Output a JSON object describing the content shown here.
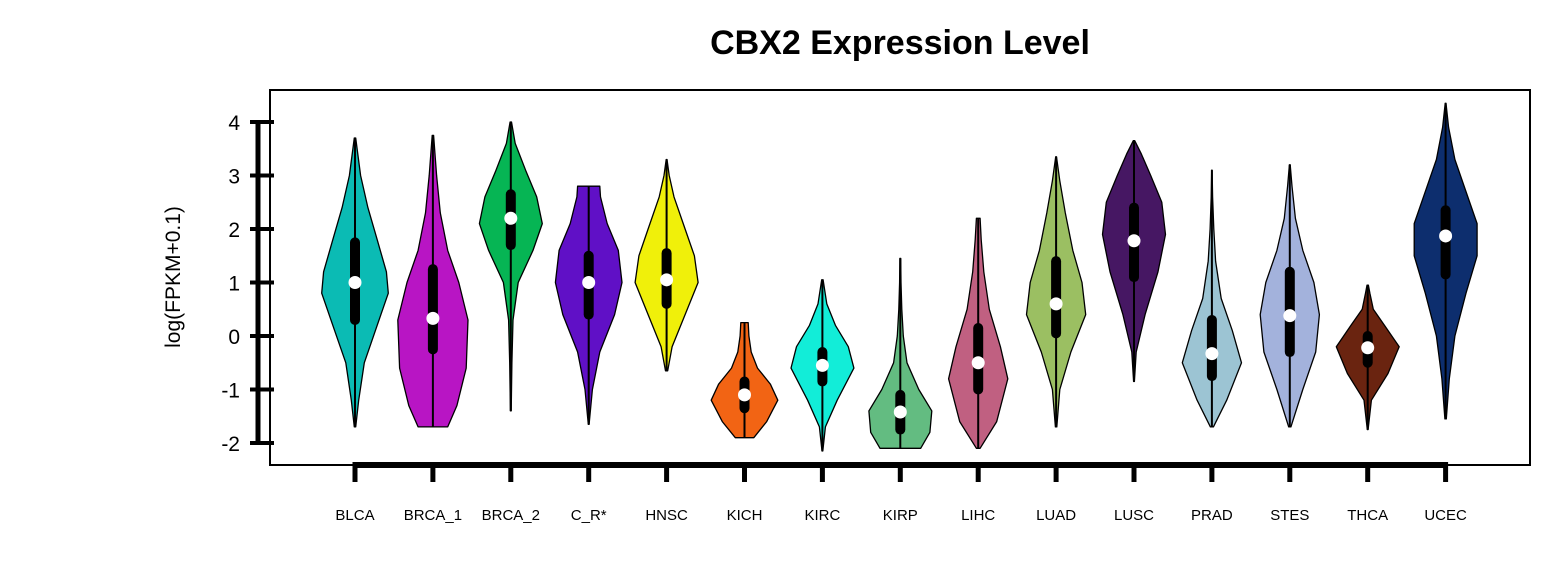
{
  "chart_data": {
    "type": "violin",
    "title": "CBX2 Expression Level",
    "xlabel": "",
    "ylabel": "log(FPKM+0.1)",
    "ylim": [
      -2.4,
      4.3
    ],
    "yticks": [
      -2,
      -1,
      0,
      1,
      2,
      3,
      4
    ],
    "grid": false,
    "legend": "none",
    "categories": [
      "BLCA",
      "BRCA_1",
      "BRCA_2",
      "C_R*",
      "HNSC",
      "KICH",
      "KIRC",
      "KIRP",
      "LIHC",
      "LUAD",
      "LUSC",
      "PRAD",
      "STES",
      "THCA",
      "UCEC"
    ],
    "series": [
      {
        "category": "BLCA",
        "color": "#0BBBB4",
        "min": -1.7,
        "q1": 0.3,
        "median": 1.0,
        "q3": 1.75,
        "max": 3.7,
        "density": [
          [
            -1.7,
            0.02
          ],
          [
            -1.2,
            0.1
          ],
          [
            -0.5,
            0.25
          ],
          [
            0.2,
            0.6
          ],
          [
            0.8,
            0.9
          ],
          [
            1.2,
            0.85
          ],
          [
            1.8,
            0.6
          ],
          [
            2.4,
            0.35
          ],
          [
            3.0,
            0.15
          ],
          [
            3.7,
            0.02
          ]
        ]
      },
      {
        "category": "BRCA_1",
        "color": "#B815C4",
        "min": -1.7,
        "q1": -0.25,
        "median": 0.33,
        "q3": 1.25,
        "max": 3.75,
        "density": [
          [
            -1.7,
            0.4
          ],
          [
            -1.3,
            0.65
          ],
          [
            -0.6,
            0.9
          ],
          [
            0.3,
            0.95
          ],
          [
            1.0,
            0.7
          ],
          [
            1.6,
            0.4
          ],
          [
            2.3,
            0.2
          ],
          [
            3.0,
            0.1
          ],
          [
            3.75,
            0.02
          ]
        ]
      },
      {
        "category": "BRCA_2",
        "color": "#06B554",
        "min": -1.4,
        "q1": 1.7,
        "median": 2.2,
        "q3": 2.65,
        "max": 4.0,
        "density": [
          [
            -1.4,
            0.01
          ],
          [
            -0.5,
            0.03
          ],
          [
            0.3,
            0.06
          ],
          [
            1.0,
            0.2
          ],
          [
            1.6,
            0.6
          ],
          [
            2.1,
            0.85
          ],
          [
            2.6,
            0.7
          ],
          [
            3.1,
            0.4
          ],
          [
            3.6,
            0.12
          ],
          [
            4.0,
            0.02
          ]
        ]
      },
      {
        "category": "C_R*",
        "color": "#6010C6",
        "min": -1.65,
        "q1": 0.4,
        "median": 1.0,
        "q3": 1.5,
        "max": 2.8,
        "density": [
          [
            -1.65,
            0.01
          ],
          [
            -1.0,
            0.1
          ],
          [
            -0.3,
            0.3
          ],
          [
            0.4,
            0.7
          ],
          [
            1.0,
            0.9
          ],
          [
            1.6,
            0.8
          ],
          [
            2.1,
            0.5
          ],
          [
            2.6,
            0.32
          ],
          [
            2.8,
            0.3
          ]
        ]
      },
      {
        "category": "HNSC",
        "color": "#F0F00A",
        "min": -0.65,
        "q1": 0.6,
        "median": 1.05,
        "q3": 1.55,
        "max": 3.3,
        "density": [
          [
            -0.65,
            0.03
          ],
          [
            -0.2,
            0.15
          ],
          [
            0.4,
            0.5
          ],
          [
            1.0,
            0.85
          ],
          [
            1.5,
            0.75
          ],
          [
            2.0,
            0.5
          ],
          [
            2.6,
            0.2
          ],
          [
            3.0,
            0.07
          ],
          [
            3.3,
            0.01
          ]
        ]
      },
      {
        "category": "KICH",
        "color": "#F26414",
        "min": -1.9,
        "q1": -1.35,
        "median": -1.1,
        "q3": -0.85,
        "max": 0.25,
        "density": [
          [
            -1.9,
            0.25
          ],
          [
            -1.6,
            0.6
          ],
          [
            -1.2,
            0.9
          ],
          [
            -0.9,
            0.7
          ],
          [
            -0.6,
            0.35
          ],
          [
            -0.3,
            0.18
          ],
          [
            0.0,
            0.12
          ],
          [
            0.25,
            0.1
          ]
        ]
      },
      {
        "category": "KIRC",
        "color": "#12EDD8",
        "min": -2.15,
        "q1": -0.85,
        "median": -0.55,
        "q3": -0.3,
        "max": 1.05,
        "density": [
          [
            -2.15,
            0.01
          ],
          [
            -1.7,
            0.08
          ],
          [
            -1.2,
            0.4
          ],
          [
            -0.6,
            0.85
          ],
          [
            -0.2,
            0.7
          ],
          [
            0.2,
            0.35
          ],
          [
            0.6,
            0.12
          ],
          [
            1.05,
            0.02
          ]
        ]
      },
      {
        "category": "KIRP",
        "color": "#63BC81",
        "min": -2.1,
        "q1": -1.75,
        "median": -1.42,
        "q3": -1.1,
        "max": 1.45,
        "density": [
          [
            -2.1,
            0.55
          ],
          [
            -1.8,
            0.8
          ],
          [
            -1.4,
            0.85
          ],
          [
            -1.0,
            0.5
          ],
          [
            -0.5,
            0.18
          ],
          [
            0.0,
            0.08
          ],
          [
            0.5,
            0.04
          ],
          [
            1.0,
            0.02
          ],
          [
            1.45,
            0.01
          ]
        ]
      },
      {
        "category": "LIHC",
        "color": "#C06081",
        "min": -2.1,
        "q1": -1.0,
        "median": -0.5,
        "q3": 0.15,
        "max": 2.2,
        "density": [
          [
            -2.1,
            0.05
          ],
          [
            -1.6,
            0.5
          ],
          [
            -0.8,
            0.8
          ],
          [
            -0.2,
            0.6
          ],
          [
            0.5,
            0.3
          ],
          [
            1.2,
            0.15
          ],
          [
            1.8,
            0.08
          ],
          [
            2.2,
            0.05
          ]
        ]
      },
      {
        "category": "LUAD",
        "color": "#9BBF62",
        "min": -1.7,
        "q1": 0.05,
        "median": 0.6,
        "q3": 1.4,
        "max": 3.35,
        "density": [
          [
            -1.7,
            0.02
          ],
          [
            -1.0,
            0.1
          ],
          [
            -0.3,
            0.4
          ],
          [
            0.4,
            0.8
          ],
          [
            1.0,
            0.7
          ],
          [
            1.6,
            0.45
          ],
          [
            2.3,
            0.25
          ],
          [
            2.9,
            0.1
          ],
          [
            3.35,
            0.01
          ]
        ]
      },
      {
        "category": "LUSC",
        "color": "#461763",
        "min": -0.85,
        "q1": 1.1,
        "median": 1.78,
        "q3": 2.4,
        "max": 3.65,
        "density": [
          [
            -0.85,
            0.01
          ],
          [
            -0.3,
            0.06
          ],
          [
            0.4,
            0.3
          ],
          [
            1.2,
            0.65
          ],
          [
            1.9,
            0.85
          ],
          [
            2.5,
            0.75
          ],
          [
            3.0,
            0.45
          ],
          [
            3.4,
            0.2
          ],
          [
            3.65,
            0.02
          ]
        ]
      },
      {
        "category": "PRAD",
        "color": "#9CC4D3",
        "min": -1.7,
        "q1": -0.75,
        "median": -0.33,
        "q3": 0.3,
        "max": 3.1,
        "density": [
          [
            -1.7,
            0.04
          ],
          [
            -1.2,
            0.4
          ],
          [
            -0.5,
            0.8
          ],
          [
            0.1,
            0.55
          ],
          [
            0.7,
            0.25
          ],
          [
            1.4,
            0.1
          ],
          [
            2.0,
            0.05
          ],
          [
            2.6,
            0.02
          ],
          [
            3.1,
            0.005
          ]
        ]
      },
      {
        "category": "STES",
        "color": "#A3B2DC",
        "min": -1.7,
        "q1": -0.3,
        "median": 0.38,
        "q3": 1.2,
        "max": 3.2,
        "density": [
          [
            -1.7,
            0.03
          ],
          [
            -1.0,
            0.35
          ],
          [
            -0.3,
            0.7
          ],
          [
            0.4,
            0.8
          ],
          [
            1.0,
            0.65
          ],
          [
            1.6,
            0.35
          ],
          [
            2.2,
            0.15
          ],
          [
            2.8,
            0.06
          ],
          [
            3.2,
            0.01
          ]
        ]
      },
      {
        "category": "THCA",
        "color": "#6A2410",
        "min": -1.75,
        "q1": -0.5,
        "median": -0.22,
        "q3": 0.0,
        "max": 0.95,
        "density": [
          [
            -1.75,
            0.01
          ],
          [
            -1.2,
            0.1
          ],
          [
            -0.7,
            0.55
          ],
          [
            -0.2,
            0.85
          ],
          [
            0.2,
            0.45
          ],
          [
            0.5,
            0.15
          ],
          [
            0.8,
            0.06
          ],
          [
            0.95,
            0.02
          ]
        ]
      },
      {
        "category": "UCEC",
        "color": "#0D2E6E",
        "min": -1.55,
        "q1": 1.15,
        "median": 1.87,
        "q3": 2.35,
        "max": 4.35,
        "density": [
          [
            -1.55,
            0.02
          ],
          [
            -0.8,
            0.1
          ],
          [
            0.0,
            0.25
          ],
          [
            0.8,
            0.55
          ],
          [
            1.5,
            0.85
          ],
          [
            2.1,
            0.85
          ],
          [
            2.7,
            0.55
          ],
          [
            3.3,
            0.25
          ],
          [
            3.9,
            0.08
          ],
          [
            4.35,
            0.01
          ]
        ]
      }
    ]
  }
}
